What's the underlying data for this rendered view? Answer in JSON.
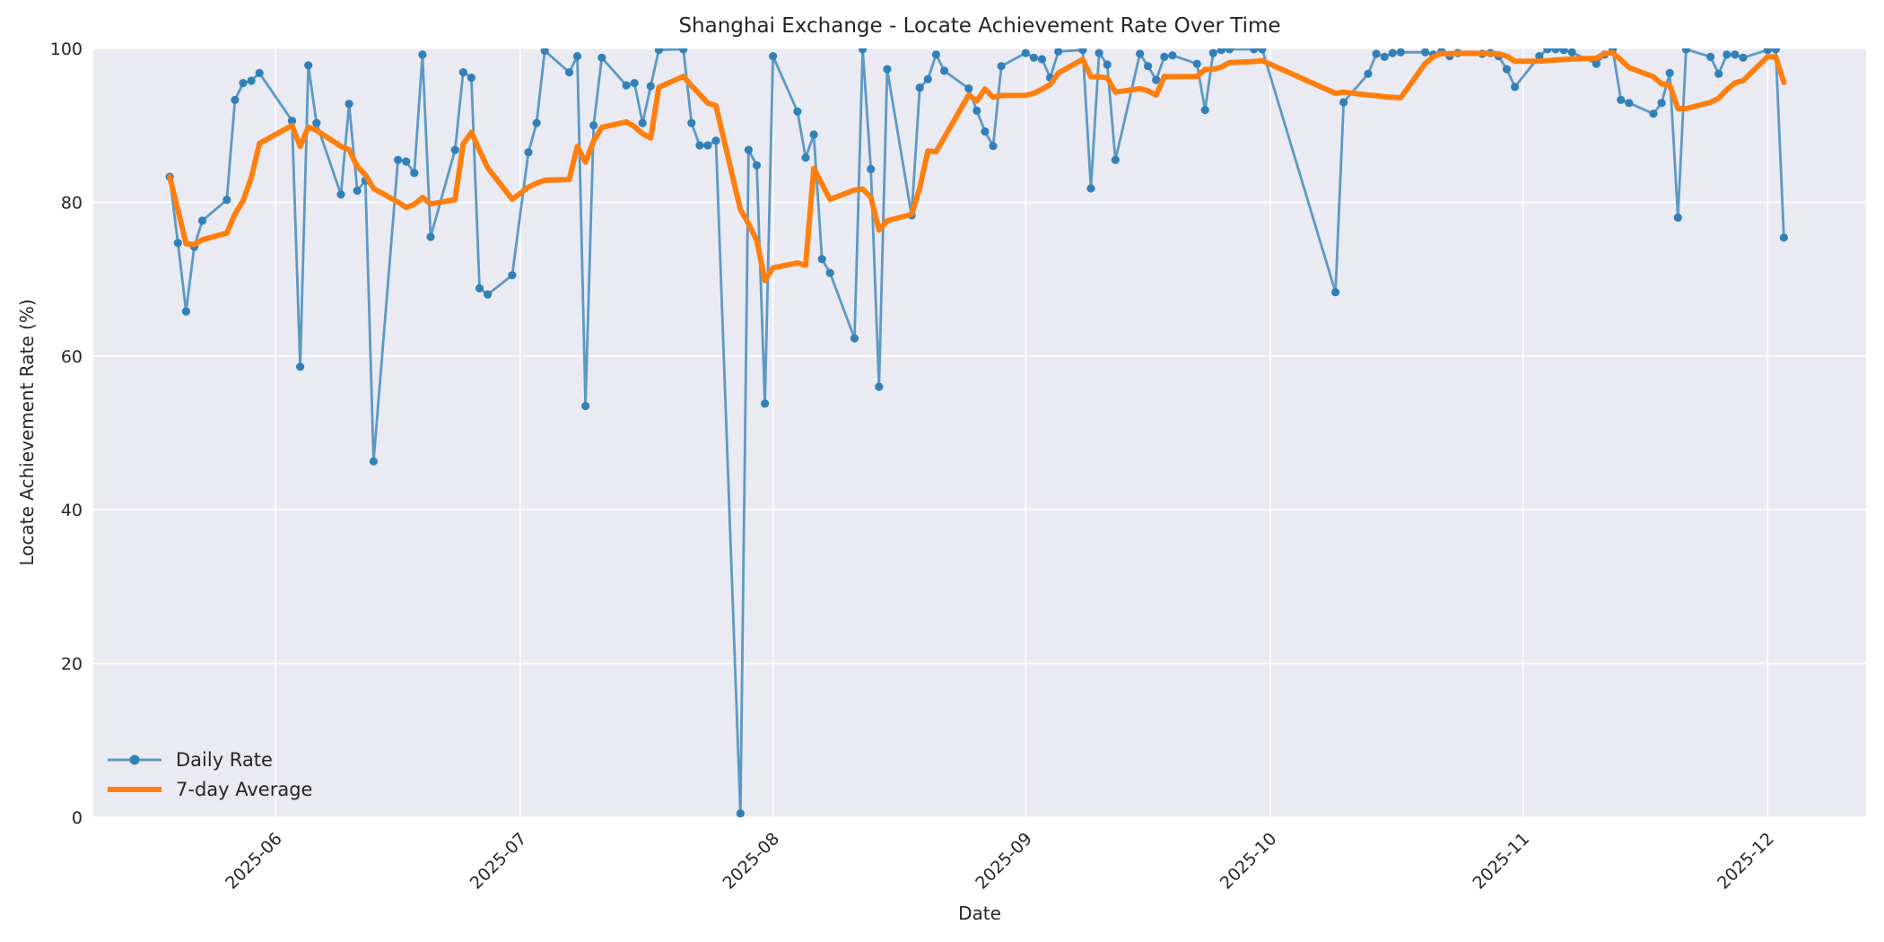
{
  "figure": {
    "title": "Shanghai Exchange - Locate Achievement Rate Over Time",
    "xlabel": "Date",
    "ylabel": "Locate Achievement Rate (%)"
  },
  "legend": {
    "items": [
      {
        "label": "Daily Rate",
        "color": "#5c99c4",
        "marker_color": "#3181b9",
        "type": "line-marker"
      },
      {
        "label": "7-day Average",
        "color": "#ff7f0e",
        "type": "line"
      }
    ]
  },
  "axes": {
    "y_ticks": [
      0,
      20,
      40,
      60,
      80,
      100
    ],
    "x_tick_labels": [
      "2025-06",
      "2025-07",
      "2025-08",
      "2025-09",
      "2025-10",
      "2025-11",
      "2025-12"
    ],
    "ylim": [
      0,
      100
    ],
    "background": "#eaeaf2",
    "grid_color": "#ffffff"
  },
  "chart_data": {
    "type": "line",
    "title": "Shanghai Exchange - Locate Achievement Rate Over Time",
    "xlabel": "Date",
    "ylabel": "Locate Achievement Rate (%)",
    "ylim": [
      0,
      100
    ],
    "grid": true,
    "legend_position": "lower left",
    "x_tick_labels": [
      "2025-06",
      "2025-07",
      "2025-08",
      "2025-09",
      "2025-10",
      "2025-11",
      "2025-12"
    ],
    "avg_window": 7,
    "series": [
      {
        "name": "Daily Rate",
        "color": "#5c99c4",
        "marker": "o",
        "dates": [
          "2025-05-19",
          "2025-05-20",
          "2025-05-21",
          "2025-05-22",
          "2025-05-23",
          "2025-05-26",
          "2025-05-27",
          "2025-05-28",
          "2025-05-29",
          "2025-05-30",
          "2025-06-03",
          "2025-06-04",
          "2025-06-05",
          "2025-06-06",
          "2025-06-09",
          "2025-06-10",
          "2025-06-11",
          "2025-06-12",
          "2025-06-13",
          "2025-06-16",
          "2025-06-17",
          "2025-06-18",
          "2025-06-19",
          "2025-06-20",
          "2025-06-23",
          "2025-06-24",
          "2025-06-25",
          "2025-06-26",
          "2025-06-27",
          "2025-06-30",
          "2025-07-02",
          "2025-07-03",
          "2025-07-04",
          "2025-07-07",
          "2025-07-08",
          "2025-07-09",
          "2025-07-10",
          "2025-07-11",
          "2025-07-14",
          "2025-07-15",
          "2025-07-16",
          "2025-07-17",
          "2025-07-18",
          "2025-07-21",
          "2025-07-22",
          "2025-07-23",
          "2025-07-24",
          "2025-07-25",
          "2025-07-28",
          "2025-07-29",
          "2025-07-30",
          "2025-07-31",
          "2025-08-01",
          "2025-08-04",
          "2025-08-05",
          "2025-08-06",
          "2025-08-07",
          "2025-08-08",
          "2025-08-11",
          "2025-08-12",
          "2025-08-13",
          "2025-08-14",
          "2025-08-15",
          "2025-08-18",
          "2025-08-19",
          "2025-08-20",
          "2025-08-21",
          "2025-08-22",
          "2025-08-25",
          "2025-08-26",
          "2025-08-27",
          "2025-08-28",
          "2025-08-29",
          "2025-09-01",
          "2025-09-02",
          "2025-09-03",
          "2025-09-04",
          "2025-09-05",
          "2025-09-08",
          "2025-09-09",
          "2025-09-10",
          "2025-09-11",
          "2025-09-12",
          "2025-09-15",
          "2025-09-16",
          "2025-09-17",
          "2025-09-18",
          "2025-09-19",
          "2025-09-22",
          "2025-09-23",
          "2025-09-24",
          "2025-09-25",
          "2025-09-26",
          "2025-09-29",
          "2025-09-30",
          "2025-10-09",
          "2025-10-10",
          "2025-10-13",
          "2025-10-14",
          "2025-10-15",
          "2025-10-16",
          "2025-10-17",
          "2025-10-20",
          "2025-10-21",
          "2025-10-22",
          "2025-10-23",
          "2025-10-24",
          "2025-10-27",
          "2025-10-28",
          "2025-10-29",
          "2025-10-30",
          "2025-10-31",
          "2025-11-03",
          "2025-11-04",
          "2025-11-05",
          "2025-11-06",
          "2025-11-07",
          "2025-11-10",
          "2025-11-11",
          "2025-11-12",
          "2025-11-13",
          "2025-11-14",
          "2025-11-17",
          "2025-11-18",
          "2025-11-19",
          "2025-11-20",
          "2025-11-21",
          "2025-11-24",
          "2025-11-25",
          "2025-11-26",
          "2025-11-27",
          "2025-11-28",
          "2025-12-01",
          "2025-12-02",
          "2025-12-03"
        ],
        "values": [
          83.3,
          74.7,
          65.8,
          74.2,
          77.6,
          80.3,
          93.3,
          95.5,
          95.8,
          96.8,
          90.6,
          58.6,
          97.8,
          90.3,
          81.0,
          92.8,
          81.5,
          82.8,
          46.3,
          85.5,
          85.3,
          83.8,
          99.2,
          75.5,
          86.8,
          96.9,
          96.2,
          68.8,
          68.0,
          70.5,
          86.5,
          90.3,
          99.7,
          96.9,
          99.0,
          53.5,
          90.0,
          98.8,
          95.2,
          95.5,
          90.3,
          95.1,
          99.8,
          99.9,
          90.3,
          87.4,
          87.4,
          88.0,
          0.5,
          86.8,
          84.8,
          53.8,
          99.0,
          91.8,
          85.8,
          88.8,
          72.6,
          70.8,
          62.3,
          99.9,
          84.3,
          56.0,
          97.3,
          78.3,
          94.9,
          96.0,
          99.2,
          97.1,
          94.8,
          91.9,
          89.2,
          87.3,
          97.7,
          99.4,
          98.8,
          98.6,
          96.2,
          99.6,
          99.8,
          81.8,
          99.4,
          97.9,
          85.5,
          99.3,
          97.7,
          95.9,
          98.9,
          99.1,
          98.0,
          92.0,
          99.4,
          99.8,
          99.9,
          99.9,
          99.9,
          68.3,
          93.0,
          96.7,
          99.3,
          98.9,
          99.4,
          99.5,
          99.5,
          99.2,
          99.6,
          99.0,
          99.4,
          99.3,
          99.4,
          99.0,
          97.3,
          95.0,
          99.0,
          99.9,
          99.9,
          99.8,
          99.5,
          98.0,
          99.2,
          99.9,
          93.3,
          92.9,
          91.5,
          92.9,
          96.8,
          78.0,
          99.9,
          98.9,
          96.7,
          99.2,
          99.2,
          98.8,
          99.8,
          99.9,
          75.4
        ]
      },
      {
        "name": "7-day Average",
        "color": "#ff7f0e",
        "derived": "rolling_mean_window_7_min_periods_1_of_daily_rate"
      }
    ]
  }
}
